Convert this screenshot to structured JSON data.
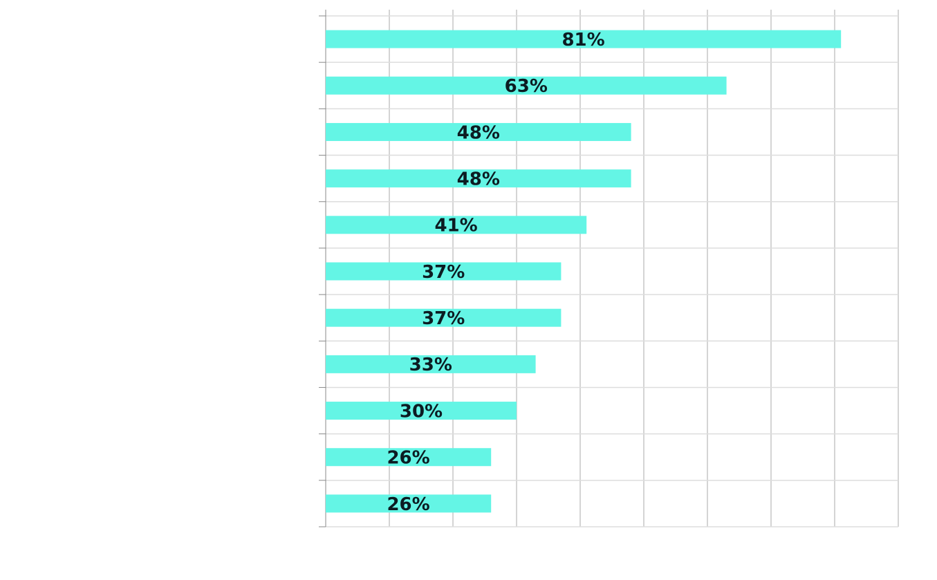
{
  "chart_data": {
    "type": "bar",
    "orientation": "horizontal",
    "categories": [
      "",
      "",
      "",
      "",
      "",
      "",
      "",
      "",
      "",
      "",
      ""
    ],
    "values": [
      81,
      63,
      48,
      48,
      41,
      37,
      37,
      33,
      30,
      26,
      26
    ],
    "data_labels": [
      "81%",
      "63%",
      "48%",
      "48%",
      "41%",
      "37%",
      "37%",
      "33%",
      "30%",
      "26%",
      "26%"
    ],
    "title": "",
    "xlabel": "",
    "ylabel": "",
    "xlim": [
      0,
      90
    ],
    "grid": true,
    "legend": "none",
    "colors": {
      "bar": "#64f5e5",
      "label": "#0c1c22",
      "gridline": "#dddddd",
      "axis": "#888888"
    }
  }
}
